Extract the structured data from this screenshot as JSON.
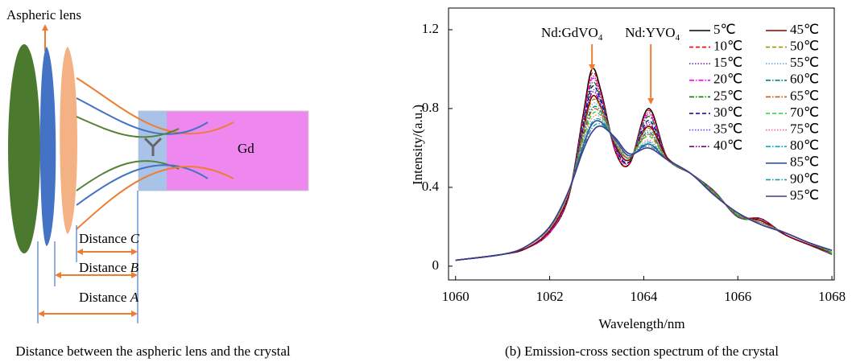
{
  "diagram": {
    "lens_label": "Aspheric lens",
    "crystal_label": "Gd",
    "distances": [
      {
        "text": "Distance",
        "letter": "C"
      },
      {
        "text": "Distance",
        "letter": "B"
      },
      {
        "text": "Distance",
        "letter": "A"
      }
    ],
    "caption": "Distance between the aspheric lens and the crystal"
  },
  "chart_data": {
    "type": "line",
    "caption": "(b) Emission-cross section spectrum of the crystal",
    "x_label": "Wavelength/nm",
    "y_label": "Intensity/(a.u.)",
    "xlim": [
      1059.85,
      1068.05
    ],
    "ylim": [
      -0.07,
      1.31
    ],
    "xticks": [
      1060,
      1062,
      1064,
      1066,
      1068
    ],
    "yticks": [
      0,
      0.4,
      0.8,
      1.2
    ],
    "legend": "upper right",
    "annotations": [
      {
        "text": "Nd:GdVO",
        "sub": "4",
        "x": 1062.9,
        "color": "#ed7d31"
      },
      {
        "text": "Nd:YVO",
        "sub": "4",
        "x": 1064.15,
        "color": "#ed7d31"
      }
    ],
    "x": [
      1060,
      1061,
      1061.5,
      1062,
      1062.4,
      1062.7,
      1062.9,
      1063.1,
      1063.4,
      1063.7,
      1064.1,
      1064.5,
      1065,
      1065.5,
      1066,
      1066.5,
      1067,
      1067.5,
      1068
    ],
    "series": [
      {
        "name": "5℃",
        "color": "#000000",
        "style": "solid",
        "values": [
          0.03,
          0.06,
          0.09,
          0.17,
          0.35,
          0.75,
          1.0,
          0.88,
          0.58,
          0.52,
          0.8,
          0.55,
          0.47,
          0.38,
          0.25,
          0.24,
          0.16,
          0.11,
          0.06
        ]
      },
      {
        "name": "10℃",
        "color": "#ff0000",
        "style": "dashed",
        "values": [
          0.03,
          0.06,
          0.09,
          0.17,
          0.35,
          0.74,
          0.98,
          0.87,
          0.58,
          0.52,
          0.79,
          0.55,
          0.47,
          0.38,
          0.25,
          0.24,
          0.16,
          0.11,
          0.06
        ]
      },
      {
        "name": "15℃",
        "color": "#7030a0",
        "style": "dotted",
        "values": [
          0.03,
          0.06,
          0.09,
          0.17,
          0.35,
          0.73,
          0.96,
          0.86,
          0.59,
          0.53,
          0.78,
          0.55,
          0.47,
          0.38,
          0.25,
          0.24,
          0.16,
          0.11,
          0.06
        ]
      },
      {
        "name": "20℃",
        "color": "#ff00ff",
        "style": "dashdot",
        "values": [
          0.03,
          0.06,
          0.09,
          0.17,
          0.36,
          0.72,
          0.95,
          0.85,
          0.59,
          0.53,
          0.77,
          0.55,
          0.47,
          0.38,
          0.25,
          0.23,
          0.16,
          0.11,
          0.06
        ]
      },
      {
        "name": "25℃",
        "color": "#008000",
        "style": "dashdot",
        "values": [
          0.03,
          0.06,
          0.09,
          0.18,
          0.36,
          0.71,
          0.93,
          0.84,
          0.6,
          0.53,
          0.76,
          0.55,
          0.47,
          0.38,
          0.25,
          0.23,
          0.16,
          0.11,
          0.06
        ]
      },
      {
        "name": "30℃",
        "color": "#000080",
        "style": "dashed",
        "values": [
          0.03,
          0.06,
          0.09,
          0.18,
          0.36,
          0.7,
          0.91,
          0.83,
          0.6,
          0.53,
          0.74,
          0.55,
          0.47,
          0.37,
          0.26,
          0.23,
          0.16,
          0.11,
          0.07
        ]
      },
      {
        "name": "35℃",
        "color": "#6a3dff",
        "style": "dotted",
        "values": [
          0.03,
          0.06,
          0.09,
          0.18,
          0.36,
          0.69,
          0.89,
          0.82,
          0.6,
          0.54,
          0.73,
          0.55,
          0.47,
          0.37,
          0.26,
          0.23,
          0.16,
          0.11,
          0.07
        ]
      },
      {
        "name": "40℃",
        "color": "#800080",
        "style": "dashdotdot",
        "values": [
          0.03,
          0.06,
          0.09,
          0.18,
          0.36,
          0.68,
          0.88,
          0.81,
          0.61,
          0.54,
          0.72,
          0.55,
          0.47,
          0.37,
          0.26,
          0.23,
          0.16,
          0.11,
          0.07
        ]
      },
      {
        "name": "45℃",
        "color": "#8b0000",
        "style": "solid",
        "values": [
          0.03,
          0.06,
          0.09,
          0.18,
          0.36,
          0.67,
          0.86,
          0.8,
          0.61,
          0.54,
          0.71,
          0.55,
          0.47,
          0.37,
          0.26,
          0.23,
          0.16,
          0.11,
          0.07
        ]
      },
      {
        "name": "50℃",
        "color": "#999900",
        "style": "dashed",
        "values": [
          0.03,
          0.06,
          0.1,
          0.19,
          0.37,
          0.67,
          0.84,
          0.8,
          0.62,
          0.55,
          0.7,
          0.54,
          0.47,
          0.37,
          0.26,
          0.22,
          0.17,
          0.12,
          0.07
        ]
      },
      {
        "name": "55℃",
        "color": "#6fa8dc",
        "style": "dotted",
        "values": [
          0.03,
          0.06,
          0.1,
          0.19,
          0.37,
          0.66,
          0.82,
          0.79,
          0.62,
          0.55,
          0.69,
          0.54,
          0.47,
          0.37,
          0.26,
          0.22,
          0.17,
          0.12,
          0.07
        ]
      },
      {
        "name": "60℃",
        "color": "#008080",
        "style": "dashdot",
        "values": [
          0.03,
          0.06,
          0.1,
          0.19,
          0.37,
          0.65,
          0.8,
          0.78,
          0.62,
          0.55,
          0.68,
          0.54,
          0.47,
          0.37,
          0.26,
          0.22,
          0.17,
          0.12,
          0.07
        ]
      },
      {
        "name": "65℃",
        "color": "#c55a11",
        "style": "dashdot",
        "values": [
          0.03,
          0.06,
          0.1,
          0.19,
          0.37,
          0.64,
          0.79,
          0.77,
          0.63,
          0.55,
          0.67,
          0.54,
          0.47,
          0.37,
          0.26,
          0.22,
          0.17,
          0.12,
          0.07
        ]
      },
      {
        "name": "70℃",
        "color": "#33cc33",
        "style": "dashed",
        "values": [
          0.03,
          0.06,
          0.1,
          0.19,
          0.37,
          0.63,
          0.77,
          0.76,
          0.63,
          0.56,
          0.66,
          0.54,
          0.47,
          0.37,
          0.26,
          0.22,
          0.17,
          0.12,
          0.07
        ]
      },
      {
        "name": "75℃",
        "color": "#ff6699",
        "style": "dotted",
        "values": [
          0.03,
          0.06,
          0.1,
          0.19,
          0.37,
          0.62,
          0.75,
          0.75,
          0.63,
          0.56,
          0.64,
          0.54,
          0.47,
          0.36,
          0.27,
          0.22,
          0.17,
          0.12,
          0.08
        ]
      },
      {
        "name": "80℃",
        "color": "#00b0c8",
        "style": "dashdot",
        "values": [
          0.03,
          0.06,
          0.1,
          0.2,
          0.38,
          0.61,
          0.73,
          0.74,
          0.64,
          0.56,
          0.63,
          0.54,
          0.47,
          0.36,
          0.27,
          0.21,
          0.17,
          0.12,
          0.08
        ]
      },
      {
        "name": "85℃",
        "color": "#2f5597",
        "style": "solid",
        "values": [
          0.03,
          0.06,
          0.1,
          0.2,
          0.38,
          0.6,
          0.72,
          0.73,
          0.64,
          0.56,
          0.62,
          0.54,
          0.47,
          0.36,
          0.27,
          0.21,
          0.17,
          0.12,
          0.08
        ]
      },
      {
        "name": "90℃",
        "color": "#1a9e9e",
        "style": "dashdot",
        "values": [
          0.03,
          0.06,
          0.1,
          0.2,
          0.38,
          0.59,
          0.7,
          0.72,
          0.65,
          0.57,
          0.61,
          0.54,
          0.47,
          0.36,
          0.27,
          0.21,
          0.17,
          0.12,
          0.08
        ]
      },
      {
        "name": "95℃",
        "color": "#3b3b8f",
        "style": "solid",
        "values": [
          0.03,
          0.06,
          0.1,
          0.2,
          0.38,
          0.58,
          0.68,
          0.71,
          0.65,
          0.57,
          0.6,
          0.54,
          0.47,
          0.36,
          0.27,
          0.21,
          0.17,
          0.12,
          0.08
        ]
      }
    ]
  }
}
